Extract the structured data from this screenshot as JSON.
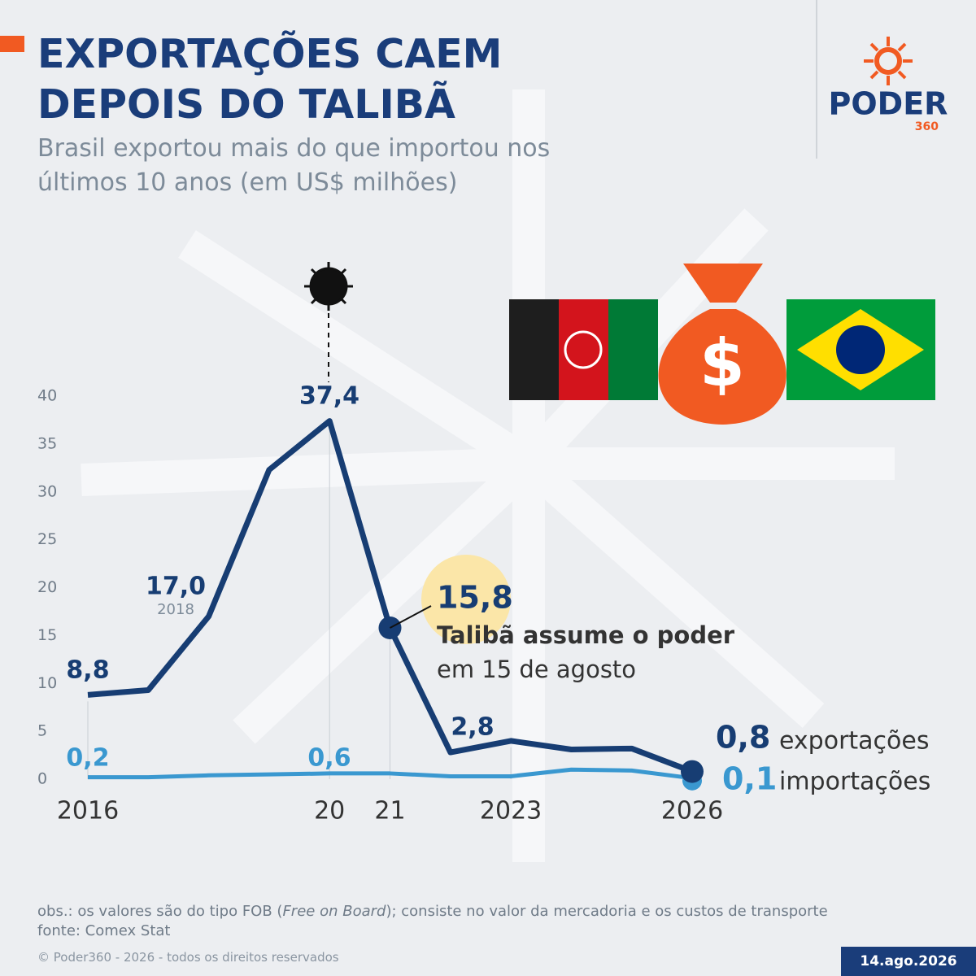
{
  "chart_data": {
    "type": "line",
    "title": "EXPORTAÇÕES CAEM DEPOIS DO TALIBÃ",
    "subtitle": "Brasil exportou mais do que importou nos últimos 10 anos (em US$ milhões)",
    "categories": [
      "2016",
      null,
      null,
      null,
      "20",
      "21",
      null,
      "2023",
      null,
      null,
      "2026"
    ],
    "series": [
      {
        "name": "exportações",
        "color": "#173d73",
        "values": [
          8.8,
          9.3,
          17.0,
          32.3,
          37.4,
          15.8,
          2.8,
          4.0,
          3.1,
          3.2,
          0.8
        ],
        "value_labels": [
          "8,8",
          null,
          "17,0",
          null,
          "37,4",
          "15,8",
          "2,8",
          null,
          null,
          null,
          "0,8"
        ]
      },
      {
        "name": "importações",
        "color": "#3a98d0",
        "values": [
          0.2,
          0.2,
          0.4,
          0.5,
          0.6,
          0.6,
          0.3,
          0.3,
          1.0,
          0.9,
          0.1
        ],
        "value_labels": [
          "0,2",
          null,
          null,
          null,
          "0,6",
          null,
          null,
          null,
          null,
          null,
          "0,1"
        ]
      }
    ],
    "ylim": [
      0,
      40
    ],
    "yticks": [
      0,
      5,
      10,
      15,
      20,
      25,
      30,
      35,
      40
    ],
    "annotations": {
      "year_2018": "2018",
      "event_bold": "Talibã assume o poder",
      "event_date": "em 15 de agosto"
    }
  },
  "logo": {
    "name": "PODER",
    "number": "360"
  },
  "footer": {
    "note_start": "obs.: os valores são do tipo FOB (",
    "note_italic": "Free on Board",
    "note_end": "); consiste no valor da mercadoria e os custos de transporte",
    "source": "fonte: Comex Stat",
    "copyright": "© Poder360 - 2026 - todos os direitos reservados",
    "date": "14.ago.2026"
  }
}
